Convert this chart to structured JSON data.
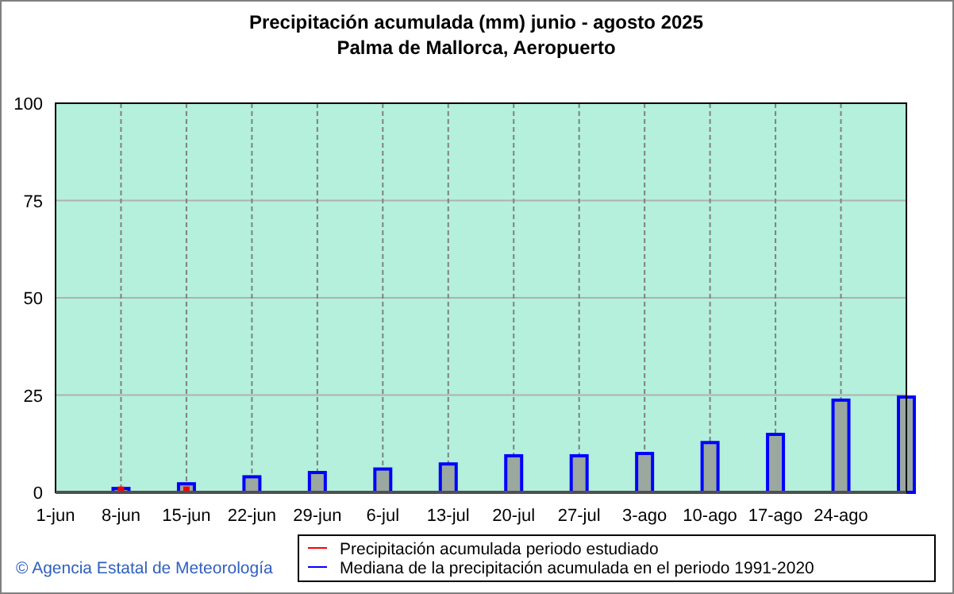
{
  "chart_data": {
    "type": "bar",
    "title": "Precipitación acumulada (mm) junio - agosto 2025",
    "subtitle": "Palma de Mallorca, Aeropuerto",
    "categories": [
      "1-jun",
      "8-jun",
      "15-jun",
      "22-jun",
      "29-jun",
      "6-jul",
      "13-jul",
      "20-jul",
      "27-jul",
      "3-ago",
      "10-ago",
      "17-ago",
      "24-ago",
      null
    ],
    "series": [
      {
        "name": "Precipitación acumulada periodo estudiado",
        "color": "#ff0000",
        "values": [
          null,
          1.5,
          1.5,
          null,
          null,
          null,
          null,
          null,
          null,
          null,
          null,
          null,
          null,
          null
        ]
      },
      {
        "name": "Mediana de la precipitación acumulada en el periodo 1991-2020",
        "color": "#0000ff",
        "values": [
          null,
          1.0,
          2.2,
          4.0,
          5.1,
          6.0,
          7.3,
          9.4,
          9.4,
          10,
          12.8,
          14.9,
          23.7,
          24.5
        ]
      }
    ],
    "ylim": [
      0,
      100
    ],
    "yticks": [
      0,
      25,
      50,
      75,
      100
    ],
    "grid": true,
    "legend": "bottom",
    "annotations": [
      "© Agencia Estatal de Meteorología"
    ]
  }
}
